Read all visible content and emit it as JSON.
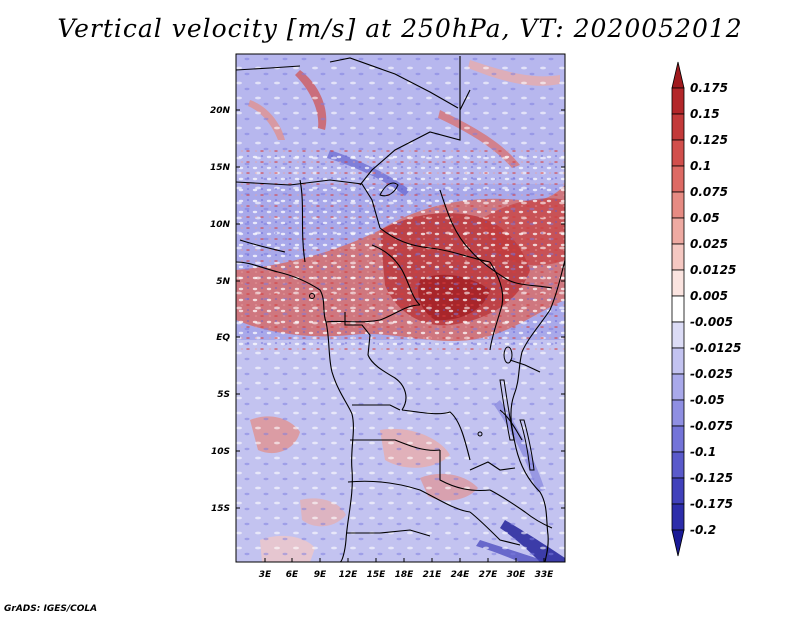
{
  "title": "Vertical velocity [m/s] at 250hPa, VT: 2020052012",
  "credit": "GrADS: IGES/COLA",
  "map": {
    "region": "Central Africa",
    "variable": "Vertical velocity",
    "units": "m/s",
    "level": "250hPa",
    "valid_time": "2020052012",
    "lon_range": [
      0,
      35
    ],
    "lat_range": [
      -20,
      25
    ]
  },
  "lat_ticks": [
    "20N",
    "15N",
    "10N",
    "5N",
    "EQ",
    "5S",
    "10S",
    "15S"
  ],
  "lon_ticks": [
    "3E",
    "6E",
    "9E",
    "12E",
    "15E",
    "18E",
    "21E",
    "24E",
    "27E",
    "30E",
    "33E"
  ],
  "colorbar": {
    "labels": [
      "0.175",
      "0.15",
      "0.125",
      "0.1",
      "0.075",
      "0.05",
      "0.025",
      "0.0125",
      "0.005",
      "-0.005",
      "-0.0125",
      "-0.025",
      "-0.05",
      "-0.075",
      "-0.1",
      "-0.125",
      "-0.175",
      "-0.2"
    ],
    "colors": [
      "#a01a1e",
      "#b3272a",
      "#c33a3a",
      "#d14f4c",
      "#dd6a64",
      "#e68b83",
      "#eeaaa2",
      "#f5c8c2",
      "#fbe4e0",
      "#ffffff",
      "#dcdcf6",
      "#c3c3f0",
      "#a9a9ea",
      "#8f8fe2",
      "#7474d8",
      "#5a5acb",
      "#4141bb",
      "#2d2daa",
      "#1a1a96"
    ]
  }
}
